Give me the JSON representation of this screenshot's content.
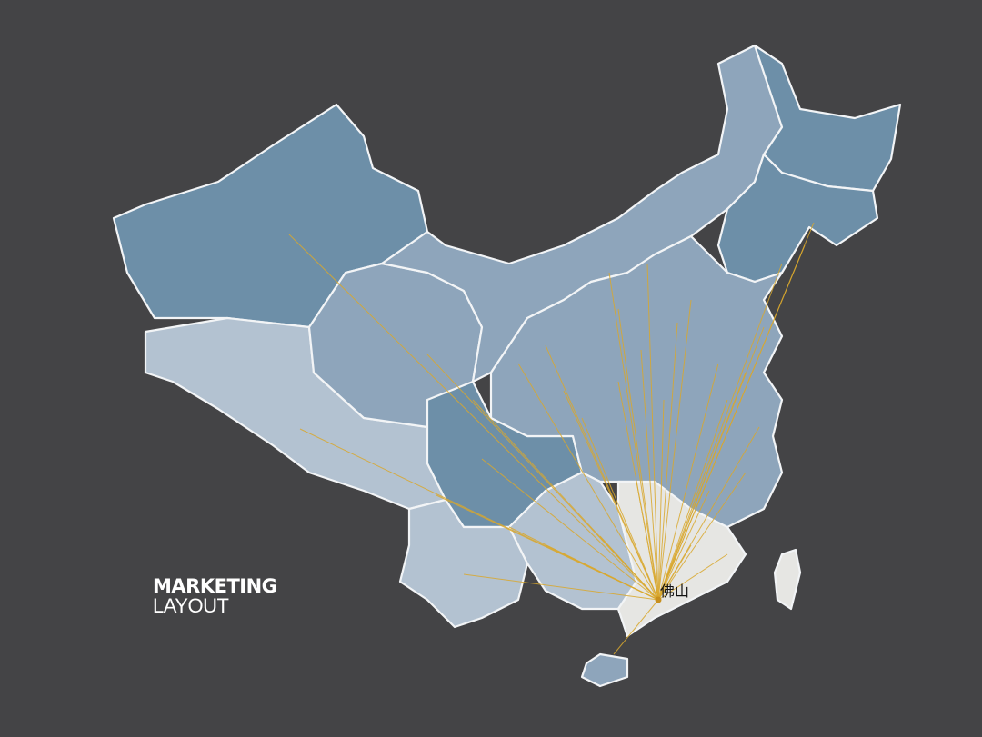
{
  "title": {
    "line1": "MARKETING",
    "line2": "LAYOUT"
  },
  "hub_city": "佛山",
  "colors": {
    "background": "#444446",
    "region_dark": "#6d8fa8",
    "region_medium": "#8ea5bb",
    "region_light": "#b3c2d1",
    "region_highlight": "#e6e6e3",
    "route_line": "#d9a82e",
    "border": "#f2f4f6"
  }
}
